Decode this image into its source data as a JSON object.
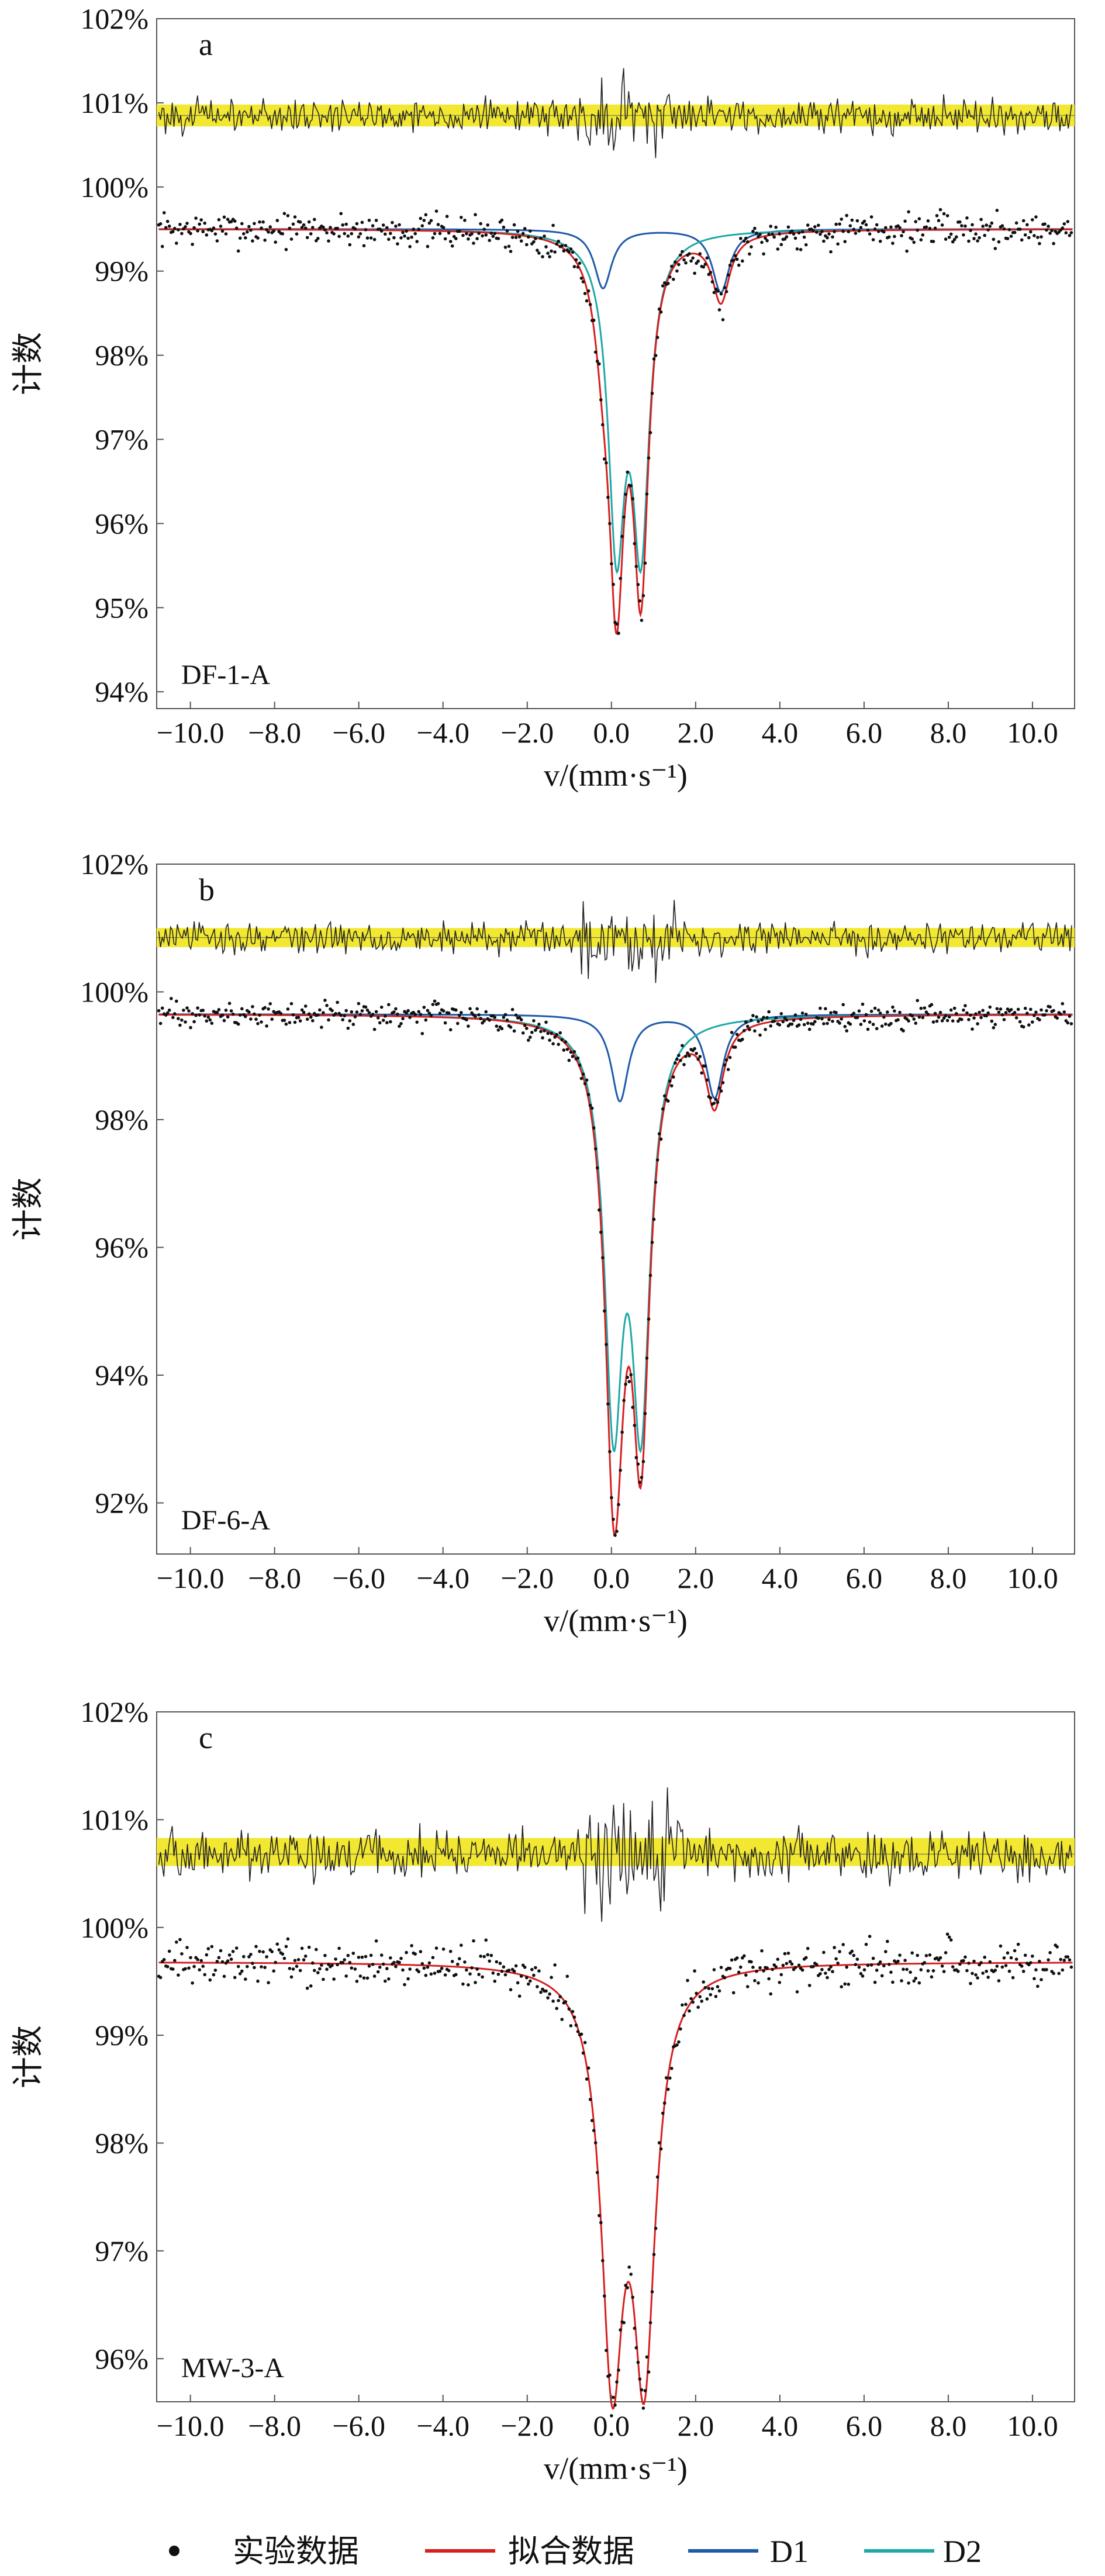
{
  "chart_data": [
    {
      "type": "line",
      "panel_label": "a",
      "sample_label": "DF-1-A",
      "ylabel": "计数",
      "xlabel": "v/(mm·s⁻¹)",
      "xlim": [
        -10.8,
        11.0
      ],
      "ylim": [
        93.8,
        102.0
      ],
      "x_ticks": [
        "−10.0",
        "−8.0",
        "−6.0",
        "−4.0",
        "−2.0",
        "0.0",
        "2.0",
        "4.0",
        "6.0",
        "8.0",
        "10.0"
      ],
      "x_tick_values": [
        -10,
        -8,
        -6,
        -4,
        -2,
        0,
        2,
        4,
        6,
        8,
        10
      ],
      "y_ticks": [
        "94%",
        "95%",
        "96%",
        "97%",
        "98%",
        "99%",
        "100%",
        "101%",
        "102%"
      ],
      "y_tick_values": [
        94,
        95,
        96,
        97,
        98,
        99,
        100,
        101,
        102
      ],
      "baseline": 99.5,
      "residual": {
        "offset": 100.85,
        "band": [
          100.72,
          100.98
        ],
        "noise": 0.14
      },
      "series": [
        {
          "name": "拟合数据",
          "color": "#d62020",
          "components": [
            {
              "center": 0.12,
              "depth": 4.0,
              "hwhm": 0.22
            },
            {
              "center": 0.7,
              "depth": 4.0,
              "hwhm": 0.22
            },
            {
              "center": -0.2,
              "depth": 0.8,
              "hwhm": 0.25
            },
            {
              "center": 2.6,
              "depth": 0.8,
              "hwhm": 0.25
            }
          ]
        },
        {
          "name": "D1",
          "color": "#1e5aa8",
          "components": [
            {
              "center": -0.2,
              "depth": 0.7,
              "hwhm": 0.25
            },
            {
              "center": 2.6,
              "depth": 0.75,
              "hwhm": 0.25
            }
          ]
        },
        {
          "name": "D2",
          "color": "#1fa8a8",
          "components": [
            {
              "center": 0.12,
              "depth": 3.55,
              "hwhm": 0.24
            },
            {
              "center": 0.7,
              "depth": 3.55,
              "hwhm": 0.24
            }
          ]
        }
      ]
    },
    {
      "type": "line",
      "panel_label": "b",
      "sample_label": "DF-6-A",
      "ylabel": "计数",
      "xlabel": "v/(mm·s⁻¹)",
      "xlim": [
        -10.8,
        11.0
      ],
      "ylim": [
        91.2,
        102.0
      ],
      "x_ticks": [
        "−10.0",
        "−8.0",
        "−6.0",
        "−4.0",
        "−2.0",
        "0.0",
        "2.0",
        "4.0",
        "6.0",
        "8.0",
        "10.0"
      ],
      "x_tick_values": [
        -10,
        -8,
        -6,
        -4,
        -2,
        0,
        2,
        4,
        6,
        8,
        10
      ],
      "y_ticks": [
        "92%",
        "94%",
        "96%",
        "98%",
        "100%",
        "102%"
      ],
      "y_tick_values": [
        92,
        94,
        96,
        98,
        100,
        102
      ],
      "baseline": 99.65,
      "residual": {
        "offset": 100.85,
        "band": [
          100.7,
          101.0
        ],
        "noise": 0.18
      },
      "series": [
        {
          "name": "拟合数据",
          "color": "#d62020",
          "components": [
            {
              "center": 0.05,
              "depth": 6.3,
              "hwhm": 0.25
            },
            {
              "center": 0.7,
              "depth": 6.3,
              "hwhm": 0.25
            },
            {
              "center": 0.2,
              "depth": 1.3,
              "hwhm": 0.25
            },
            {
              "center": 2.45,
              "depth": 1.3,
              "hwhm": 0.25
            }
          ]
        },
        {
          "name": "D1",
          "color": "#1e5aa8",
          "components": [
            {
              "center": 0.2,
              "depth": 1.35,
              "hwhm": 0.25
            },
            {
              "center": 2.45,
              "depth": 1.3,
              "hwhm": 0.25
            }
          ]
        },
        {
          "name": "D2",
          "color": "#1fa8a8",
          "components": [
            {
              "center": 0.05,
              "depth": 6.0,
              "hwhm": 0.26
            },
            {
              "center": 0.7,
              "depth": 6.0,
              "hwhm": 0.26
            }
          ]
        }
      ]
    },
    {
      "type": "line",
      "panel_label": "c",
      "sample_label": "MW-3-A",
      "ylabel": "计数",
      "xlabel": "v/(mm·s⁻¹)",
      "xlim": [
        -10.8,
        11.0
      ],
      "ylim": [
        95.6,
        102.0
      ],
      "x_ticks": [
        "−10.0",
        "−8.0",
        "−6.0",
        "−4.0",
        "−2.0",
        "0.0",
        "2.0",
        "4.0",
        "6.0",
        "8.0",
        "10.0"
      ],
      "x_tick_values": [
        -10,
        -8,
        -6,
        -4,
        -2,
        0,
        2,
        4,
        6,
        8,
        10
      ],
      "y_ticks": [
        "96%",
        "97%",
        "98%",
        "99%",
        "100%",
        "101%",
        "102%"
      ],
      "y_tick_values": [
        96,
        97,
        98,
        99,
        100,
        101,
        102
      ],
      "baseline": 99.68,
      "residual": {
        "offset": 100.68,
        "band": [
          100.57,
          100.83
        ],
        "noise": 0.16
      },
      "series": [
        {
          "name": "拟合数据",
          "color": "#d62020",
          "components": [
            {
              "center": 0.02,
              "depth": 3.6,
              "hwhm": 0.32
            },
            {
              "center": 0.78,
              "depth": 3.55,
              "hwhm": 0.32
            }
          ]
        }
      ]
    }
  ],
  "legend": {
    "items": [
      {
        "label": "实验数据",
        "kind": "dot",
        "color": "#111111"
      },
      {
        "label": "拟合数据",
        "kind": "line",
        "color": "#d62020"
      },
      {
        "label": "D1",
        "kind": "line",
        "color": "#1e5aa8"
      },
      {
        "label": "D2",
        "kind": "line",
        "color": "#1fa8a8"
      }
    ]
  },
  "colors": {
    "residual_band": "#f2e832",
    "axis": "#555555",
    "data_points": "#111111"
  }
}
